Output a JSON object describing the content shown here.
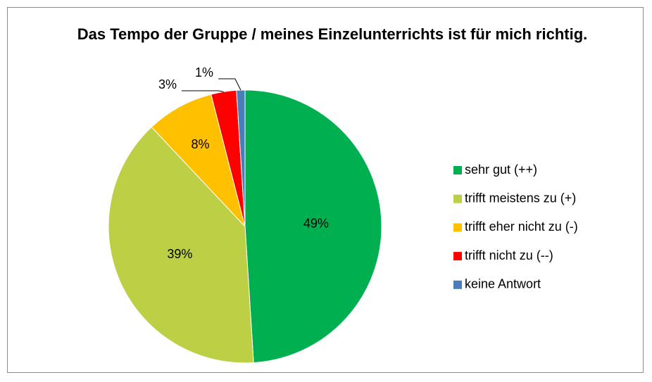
{
  "chart_data": {
    "type": "pie",
    "title": "Das Tempo der Gruppe / meines Einzelunterrichts ist für mich richtig.",
    "categories": [
      "sehr gut (++)",
      "trifft meistens zu (+)",
      "trifft eher nicht zu (-)",
      "trifft nicht zu (--)",
      "keine Antwort"
    ],
    "values": [
      49,
      39,
      8,
      3,
      1
    ],
    "value_labels": [
      "49%",
      "39%",
      "8%",
      "3%",
      "1%"
    ],
    "colors": [
      "#00b050",
      "#bccf45",
      "#ffc000",
      "#ff0000",
      "#4a7ebb"
    ],
    "legend": "right"
  }
}
